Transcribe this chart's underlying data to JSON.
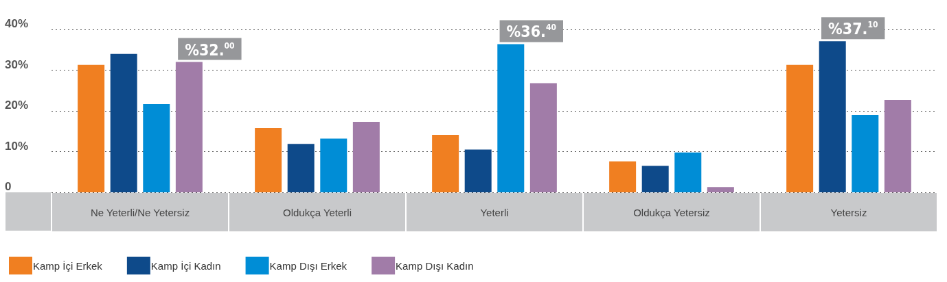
{
  "chart_data": {
    "type": "bar",
    "categories": [
      "Ne Yeterli/Ne Yetersiz",
      "Oldukça Yeterli",
      "Yeterli",
      "Oldukça Yetersiz",
      "Yetersiz"
    ],
    "series": [
      {
        "name": "Kamp İçi Erkek",
        "color": "#f07f21",
        "values": [
          31.3,
          15.8,
          14.1,
          7.6,
          31.3
        ]
      },
      {
        "name": "Kamp İçi Kadın",
        "color": "#0e4a8a",
        "values": [
          34.0,
          11.9,
          10.5,
          6.5,
          37.1
        ],
        "value_labels": [
          null,
          null,
          null,
          null,
          "%37.$^{10}$"
        ]
      },
      {
        "name": "Kamp Dışı Erkek",
        "color": "#008dd6",
        "values": [
          21.7,
          13.2,
          36.4,
          9.8,
          19.0
        ],
        "value_labels": [
          null,
          null,
          "%36.$^{40}$",
          null,
          null
        ]
      },
      {
        "name": "Kamp Dışı Kadın",
        "color": "#a17ca8",
        "values": [
          32.0,
          17.3,
          26.8,
          1.3,
          22.7
        ],
        "value_labels": [
          "%32.$^{00}$",
          null,
          null,
          null,
          null
        ]
      }
    ],
    "ylim": [
      0,
      40
    ],
    "yticks": [
      0,
      {
        "value": 10,
        "label": "10%"
      },
      {
        "value": 20,
        "label": "20%"
      },
      {
        "value": 30,
        "label": "30%"
      },
      {
        "value": 40,
        "label": "40%"
      }
    ],
    "grid": "y",
    "legend": "bottom left"
  }
}
